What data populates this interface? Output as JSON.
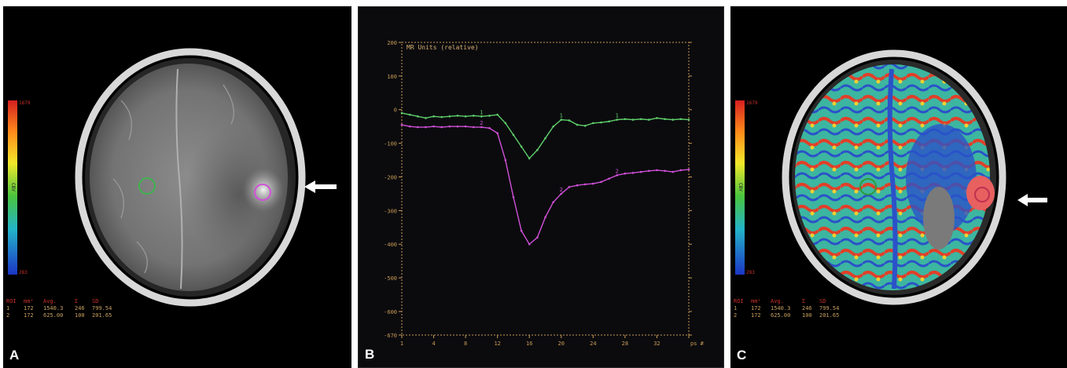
{
  "panels": [
    {
      "letter": "A"
    },
    {
      "letter": "B"
    },
    {
      "letter": "C"
    }
  ],
  "colorbar": {
    "max": "1679",
    "min": "283",
    "label": "CBV"
  },
  "stats_table": {
    "headers": [
      "ROI",
      "mm²",
      "Avg.",
      "Σ",
      "SD"
    ],
    "rows": [
      [
        "1",
        "172",
        "1540.3",
        "246",
        "799.54"
      ],
      [
        "2",
        "172",
        "625.00",
        "100",
        "201.65"
      ]
    ]
  },
  "chart_data": {
    "type": "line",
    "ylabel": "MR Units (relative)",
    "ylim": [
      -670,
      200
    ],
    "xlim": [
      0,
      36
    ],
    "y_ticks": [
      "200",
      "100",
      "0",
      "-100",
      "-200",
      "-300",
      "-400",
      "-500",
      "-600",
      "-670"
    ],
    "x_ticks": [
      "0",
      "4",
      "8",
      "12",
      "16",
      "20",
      "24",
      "28",
      "32",
      "36"
    ],
    "x_tick_labels": [
      "1",
      "4",
      "8",
      "12",
      "16",
      "20",
      "24",
      "28",
      "32",
      ""
    ],
    "footer": "ps #",
    "series": [
      {
        "name": "1",
        "color": "#5fcf6a",
        "x": [
          0,
          1,
          2,
          3,
          4,
          5,
          6,
          7,
          8,
          9,
          10,
          11,
          12,
          13,
          14,
          15,
          16,
          17,
          18,
          19,
          20,
          21,
          22,
          23,
          24,
          25,
          26,
          27,
          28,
          29,
          30,
          31,
          32,
          33,
          34,
          35,
          36
        ],
        "y": [
          -10,
          -15,
          -20,
          -25,
          -20,
          -22,
          -20,
          -18,
          -20,
          -18,
          -20,
          -18,
          -15,
          -40,
          -75,
          -110,
          -145,
          -120,
          -85,
          -50,
          -30,
          -32,
          -45,
          -48,
          -40,
          -38,
          -35,
          -30,
          -28,
          -30,
          -28,
          -30,
          -25,
          -28,
          -30,
          -28,
          -30
        ]
      },
      {
        "name": "2",
        "color": "#d050d8",
        "x": [
          0,
          1,
          2,
          3,
          4,
          5,
          6,
          7,
          8,
          9,
          10,
          11,
          12,
          13,
          14,
          15,
          16,
          17,
          18,
          19,
          20,
          21,
          22,
          23,
          24,
          25,
          26,
          27,
          28,
          29,
          30,
          31,
          32,
          33,
          34,
          35,
          36
        ],
        "y": [
          -45,
          -50,
          -52,
          -52,
          -50,
          -52,
          -50,
          -50,
          -50,
          -52,
          -52,
          -55,
          -70,
          -150,
          -260,
          -360,
          -400,
          -380,
          -320,
          -275,
          -250,
          -230,
          -225,
          -222,
          -220,
          -215,
          -205,
          -195,
          -190,
          -188,
          -185,
          -182,
          -180,
          -182,
          -185,
          -180,
          -178
        ]
      }
    ]
  },
  "tumor_arrows": 2
}
